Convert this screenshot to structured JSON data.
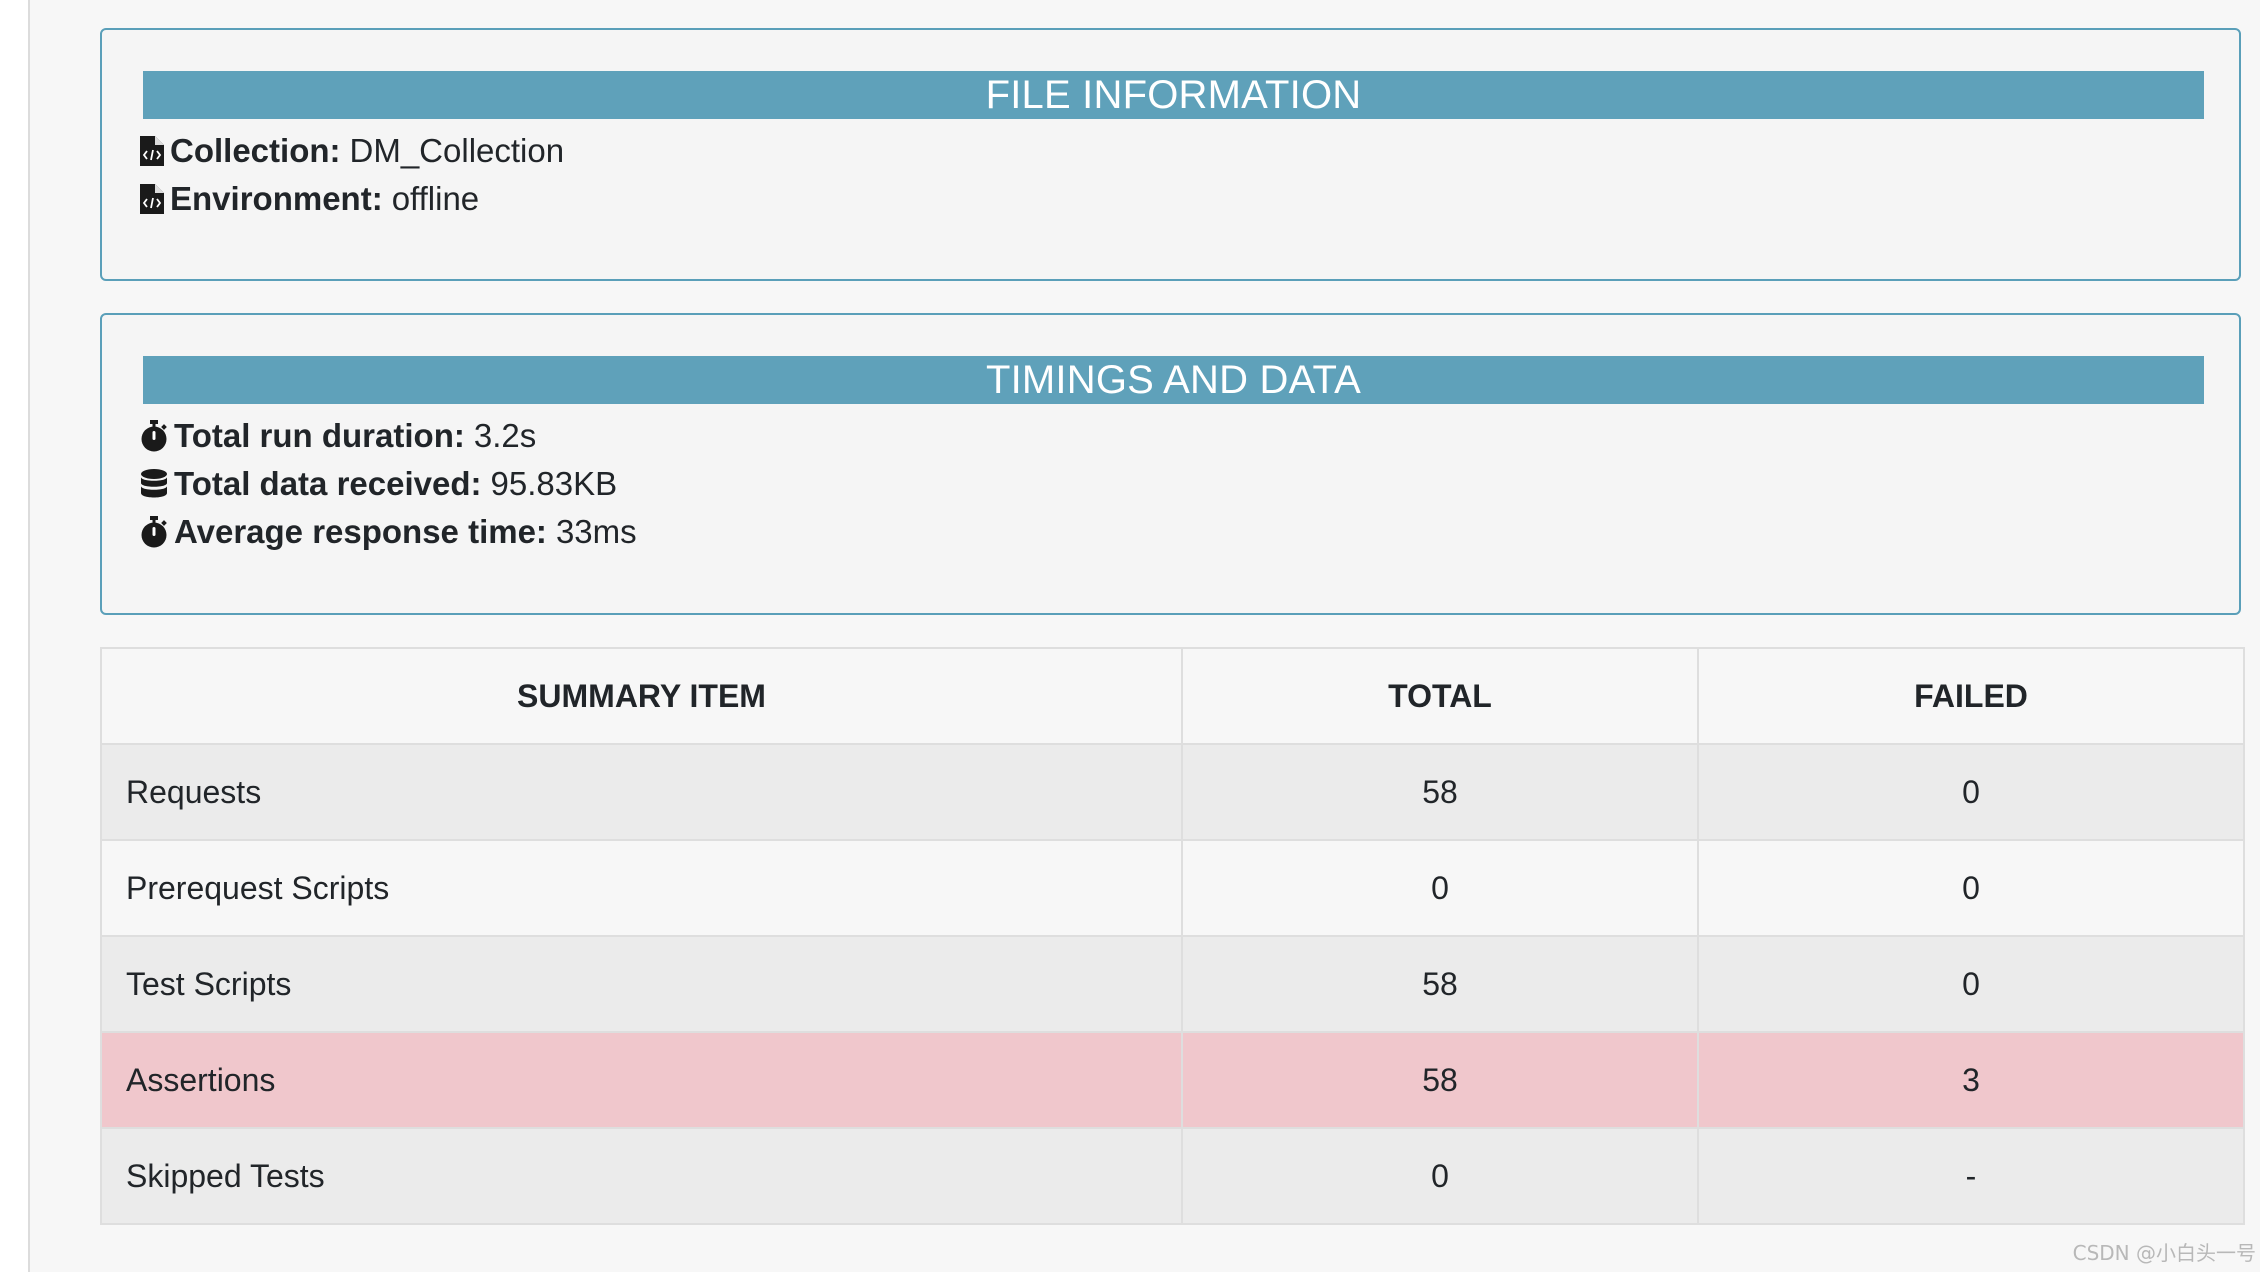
{
  "file_info": {
    "title": "FILE INFORMATION",
    "items": [
      {
        "label": "Collection:",
        "value": "DM_Collection",
        "icon": "file-code-icon"
      },
      {
        "label": "Environment:",
        "value": "offline",
        "icon": "file-code-icon"
      }
    ]
  },
  "timings": {
    "title": "TIMINGS AND DATA",
    "items": [
      {
        "label": "Total run duration:",
        "value": "3.2s",
        "icon": "stopwatch-icon"
      },
      {
        "label": "Total data received:",
        "value": "95.83KB",
        "icon": "database-icon"
      },
      {
        "label": "Average response time:",
        "value": "33ms",
        "icon": "stopwatch-icon"
      }
    ]
  },
  "summary": {
    "headers": [
      "SUMMARY ITEM",
      "TOTAL",
      "FAILED"
    ],
    "rows": [
      {
        "item": "Requests",
        "total": "58",
        "failed": "0",
        "status": "normal"
      },
      {
        "item": "Prerequest Scripts",
        "total": "0",
        "failed": "0",
        "status": "normal"
      },
      {
        "item": "Test Scripts",
        "total": "58",
        "failed": "0",
        "status": "normal"
      },
      {
        "item": "Assertions",
        "total": "58",
        "failed": "3",
        "status": "danger"
      },
      {
        "item": "Skipped Tests",
        "total": "0",
        "failed": "-",
        "status": "normal"
      }
    ]
  },
  "colors": {
    "header_bar": "#5fa1ba",
    "card_border": "#5a9fb9",
    "danger_row": "#f0c7cc"
  },
  "watermark": "CSDN @小白头一号"
}
